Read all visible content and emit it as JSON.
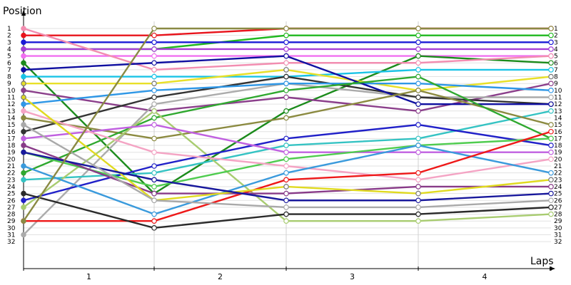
{
  "chart_data": {
    "type": "line",
    "ylabel": "Position",
    "xlabel": "Laps",
    "x_tick_labels": [
      "1",
      "2",
      "3",
      "4"
    ],
    "y_tick_labels": [
      "1",
      "2",
      "3",
      "4",
      "5",
      "6",
      "7",
      "8",
      "9",
      "10",
      "11",
      "12",
      "13",
      "14",
      "15",
      "16",
      "17",
      "18",
      "19",
      "20",
      "21",
      "22",
      "23",
      "24",
      "25",
      "26",
      "27",
      "28",
      "29",
      "30",
      "31",
      "32"
    ],
    "x": [
      0,
      1,
      2,
      3,
      4
    ],
    "ylim": [
      1,
      32
    ],
    "y_inverted": true,
    "grid": "horizontal",
    "series": [
      {
        "color": "#e8141c",
        "values": [
          2,
          2,
          1,
          1,
          1
        ]
      },
      {
        "color": "#1fb81f",
        "values": [
          4,
          4,
          2,
          2,
          2
        ]
      },
      {
        "color": "#1a1ad6",
        "values": [
          3,
          3,
          3,
          3,
          3
        ]
      },
      {
        "color": "#a63fd6",
        "values": [
          4,
          4,
          4,
          4,
          4
        ]
      },
      {
        "color": "#f070f0",
        "values": [
          5,
          5,
          5,
          5,
          5
        ]
      },
      {
        "color": "#1b8b1b",
        "values": [
          6,
          25,
          13,
          5,
          6
        ]
      },
      {
        "color": "#19c3e6",
        "values": [
          8,
          8,
          8,
          7,
          7
        ]
      },
      {
        "color": "#f28db0",
        "values": [
          1,
          7,
          6,
          6,
          5
        ]
      },
      {
        "color": "#e8e028",
        "values": [
          9,
          9,
          7,
          10,
          8
        ]
      },
      {
        "color": "#8b3f8b",
        "values": [
          10,
          13,
          11,
          13,
          9
        ]
      },
      {
        "color": "#ababab",
        "values": [
          31,
          12,
          9,
          11,
          11
        ]
      },
      {
        "color": "#333333",
        "values": [
          16,
          11,
          8,
          11,
          12
        ]
      },
      {
        "color": "#2f97e6",
        "values": [
          12,
          10,
          9,
          9,
          10
        ]
      },
      {
        "color": "#0f0fa0",
        "values": [
          7,
          6,
          5,
          12,
          12
        ]
      },
      {
        "color": "#35c3c3",
        "values": [
          23,
          22,
          18,
          17,
          13
        ]
      },
      {
        "color": "#8b8a40",
        "values": [
          14,
          17,
          14,
          10,
          15
        ]
      },
      {
        "color": "#2fa82f",
        "values": [
          22,
          14,
          10,
          8,
          17
        ]
      },
      {
        "color": "#a8cc70",
        "values": [
          27,
          13,
          29,
          29,
          28
        ]
      },
      {
        "color": "#2020c8",
        "values": [
          26,
          21,
          17,
          15,
          18
        ]
      },
      {
        "color": "#c060e0",
        "values": [
          17,
          15,
          19,
          19,
          19
        ]
      },
      {
        "color": "#4fcc4f",
        "values": [
          19,
          24,
          20,
          18,
          17
        ]
      },
      {
        "color": "#f4a4c4",
        "values": [
          13,
          19,
          21,
          23,
          20
        ]
      },
      {
        "color": "#3a9adc",
        "values": [
          21,
          28,
          22,
          18,
          22
        ]
      },
      {
        "color": "#ee1818",
        "values": [
          29,
          29,
          23,
          22,
          16
        ]
      },
      {
        "color": "#883a88",
        "values": [
          18,
          25,
          25,
          24,
          24
        ]
      },
      {
        "color": "#e0da20",
        "values": [
          11,
          26,
          24,
          25,
          23
        ]
      },
      {
        "color": "#18189c",
        "values": [
          19,
          23,
          26,
          26,
          25
        ]
      },
      {
        "color": "#a9a9a9",
        "values": [
          15,
          26,
          27,
          27,
          26
        ]
      },
      {
        "color": "#2a2a2a",
        "values": [
          25,
          30,
          28,
          28,
          27
        ]
      },
      {
        "color": "#8a8a44",
        "values": [
          29,
          1,
          1,
          1,
          1
        ]
      }
    ]
  }
}
